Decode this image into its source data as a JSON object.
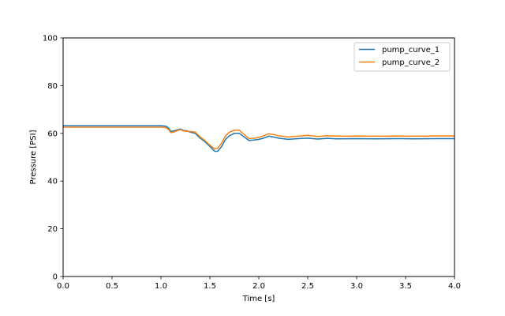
{
  "chart_data": {
    "type": "line",
    "title": "",
    "xlabel": "Time [s]",
    "ylabel": "Pressure [PSI]",
    "xlim": [
      0,
      4
    ],
    "ylim": [
      0,
      100
    ],
    "xticks": [
      "0.0",
      "0.5",
      "1.0",
      "1.5",
      "2.0",
      "2.5",
      "3.0",
      "3.5",
      "4.0"
    ],
    "yticks": [
      "0",
      "20",
      "40",
      "60",
      "80",
      "100"
    ],
    "grid": false,
    "legend_position": "top-right",
    "series": [
      {
        "name": "pump_curve_1",
        "color": "#1f77b4",
        "x": [
          0,
          1.0,
          1.05,
          1.08,
          1.1,
          1.13,
          1.17,
          1.2,
          1.23,
          1.27,
          1.3,
          1.35,
          1.4,
          1.45,
          1.5,
          1.55,
          1.58,
          1.62,
          1.66,
          1.7,
          1.75,
          1.8,
          1.85,
          1.9,
          1.95,
          2.0,
          2.05,
          2.1,
          2.15,
          2.2,
          2.3,
          2.4,
          2.5,
          2.6,
          2.7,
          2.8,
          3.0,
          3.2,
          3.4,
          3.6,
          3.8,
          4.0
        ],
        "y": [
          63.2,
          63.2,
          63.0,
          62.2,
          60.8,
          61.0,
          61.5,
          61.8,
          61.2,
          61.0,
          60.5,
          60.0,
          58.0,
          56.5,
          54.5,
          52.5,
          52.5,
          54.5,
          57.5,
          59.0,
          60.0,
          60.0,
          58.5,
          57.0,
          57.2,
          57.5,
          58.0,
          58.8,
          58.5,
          58.0,
          57.5,
          57.8,
          58.0,
          57.6,
          57.9,
          57.7,
          57.8,
          57.7,
          57.8,
          57.7,
          57.8,
          57.8
        ]
      },
      {
        "name": "pump_curve_2",
        "color": "#ff7f0e",
        "x": [
          0,
          1.0,
          1.05,
          1.08,
          1.1,
          1.13,
          1.17,
          1.2,
          1.23,
          1.27,
          1.3,
          1.35,
          1.4,
          1.45,
          1.5,
          1.55,
          1.58,
          1.62,
          1.66,
          1.7,
          1.75,
          1.8,
          1.85,
          1.9,
          1.95,
          2.0,
          2.05,
          2.1,
          2.15,
          2.2,
          2.3,
          2.4,
          2.5,
          2.6,
          2.7,
          2.8,
          3.0,
          3.2,
          3.4,
          3.6,
          3.8,
          4.0
        ],
        "y": [
          62.6,
          62.6,
          62.4,
          61.5,
          60.3,
          60.5,
          61.2,
          61.6,
          61.0,
          60.8,
          60.8,
          60.5,
          58.5,
          57.0,
          55.0,
          53.5,
          53.8,
          56.0,
          59.0,
          60.5,
          61.3,
          61.3,
          59.5,
          57.8,
          58.0,
          58.3,
          59.0,
          59.8,
          59.5,
          59.0,
          58.5,
          58.8,
          59.2,
          58.7,
          59.0,
          58.8,
          58.9,
          58.8,
          58.9,
          58.8,
          58.9,
          58.9
        ]
      }
    ]
  }
}
